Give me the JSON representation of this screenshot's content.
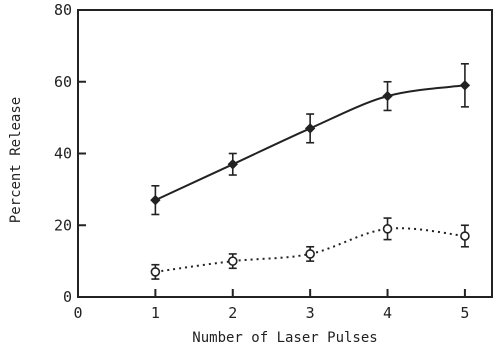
{
  "chart_data": {
    "type": "line",
    "title": "",
    "xlabel": "Number of Laser Pulses",
    "ylabel": "Percent Release",
    "xlim": [
      0,
      5.35
    ],
    "ylim": [
      0,
      80
    ],
    "x_ticks": [
      0,
      1,
      2,
      3,
      4,
      5
    ],
    "x_tick_labels": [
      "0",
      "1",
      "2",
      "3",
      "4",
      "5"
    ],
    "y_ticks": [
      0,
      20,
      40,
      60,
      80
    ],
    "y_tick_labels": [
      "0",
      "20",
      "40",
      "60",
      "80"
    ],
    "grid": false,
    "legend": "none",
    "series": [
      {
        "marker": "filled-diamond",
        "line_style": "solid",
        "color": "#222222",
        "x": [
          1,
          2,
          3,
          4,
          5
        ],
        "y": [
          27,
          37,
          47,
          56,
          59
        ],
        "error": [
          4,
          3,
          4,
          4,
          6
        ]
      },
      {
        "marker": "open-circle",
        "line_style": "dotted",
        "color": "#222222",
        "x": [
          1,
          2,
          3,
          4,
          5
        ],
        "y": [
          7,
          10,
          12,
          19,
          17
        ],
        "error": [
          2,
          2,
          2,
          3,
          3
        ]
      }
    ]
  }
}
